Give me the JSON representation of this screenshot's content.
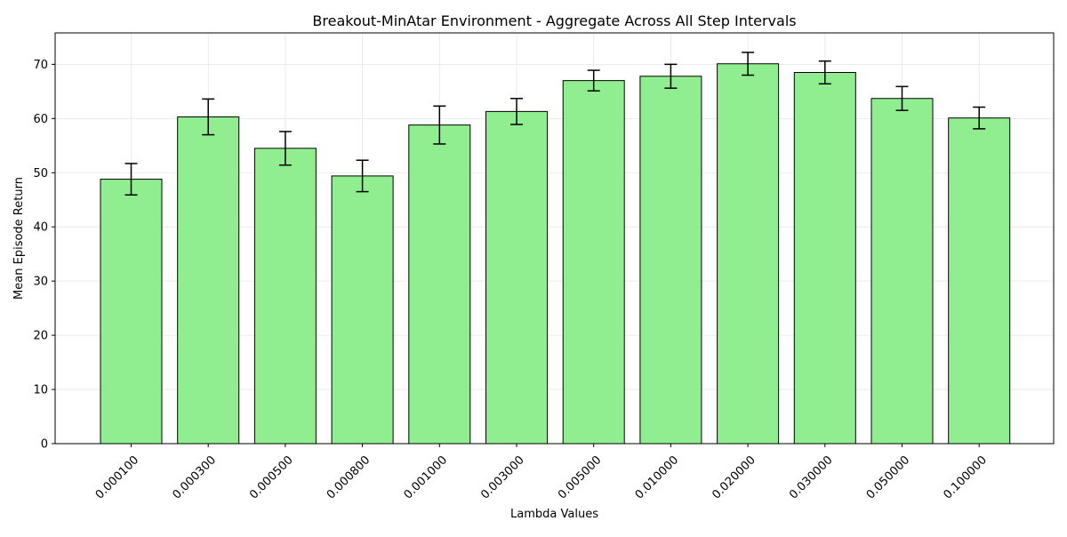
{
  "chart_data": {
    "type": "bar",
    "title": "Breakout-MinAtar Environment - Aggregate Across All Step Intervals",
    "xlabel": "Lambda Values",
    "ylabel": "Mean Episode Return",
    "categories": [
      "0.000100",
      "0.000300",
      "0.000500",
      "0.000800",
      "0.001000",
      "0.003000",
      "0.005000",
      "0.010000",
      "0.020000",
      "0.030000",
      "0.050000",
      "0.100000"
    ],
    "values": [
      48.8,
      60.3,
      54.5,
      49.4,
      58.8,
      61.3,
      67.0,
      67.8,
      70.1,
      68.5,
      63.7,
      60.1
    ],
    "errors": [
      2.9,
      3.3,
      3.1,
      2.9,
      3.5,
      2.4,
      1.9,
      2.2,
      2.1,
      2.1,
      2.2,
      2.0
    ],
    "ylim": [
      0,
      75.8
    ],
    "yticks": [
      0,
      10,
      20,
      30,
      40,
      50,
      60,
      70
    ],
    "grid": true,
    "bar_color": "#90ee90",
    "edge_color": "#000000",
    "error_color": "#000000"
  }
}
